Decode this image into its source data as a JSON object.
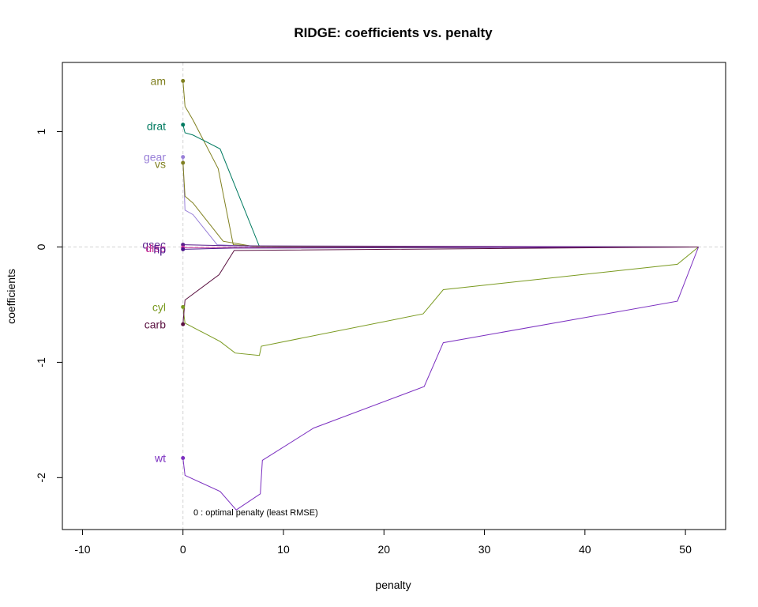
{
  "chart_data": {
    "type": "line",
    "title": "RIDGE: coefficients vs. penalty",
    "xlabel": "penalty",
    "ylabel": "coefficients",
    "xlim": [
      -12,
      54
    ],
    "ylim": [
      -2.45,
      1.6
    ],
    "x_ticks": [
      -10,
      0,
      10,
      20,
      30,
      40,
      50
    ],
    "y_ticks": [
      -2,
      -1,
      0,
      1
    ],
    "reference_lines": {
      "x": 0,
      "y": 0,
      "style": "dashed",
      "color": "#d3d3d3"
    },
    "annotation": "0 : optimal penalty (least RMSE)",
    "grid": false,
    "legend": "none",
    "series": [
      {
        "name": "am",
        "color": "#808020",
        "label_y": 1.44,
        "points": [
          [
            0,
            1.44
          ],
          [
            0.2,
            1.22
          ],
          [
            1,
            1.1
          ],
          [
            3.5,
            0.68
          ],
          [
            5,
            0.02
          ],
          [
            7.5,
            0.005
          ],
          [
            10,
            0.002
          ],
          [
            51.3,
            0
          ]
        ]
      },
      {
        "name": "drat",
        "color": "#007a60",
        "label_y": 1.05,
        "points": [
          [
            0,
            1.06
          ],
          [
            0.2,
            0.99
          ],
          [
            1,
            0.97
          ],
          [
            3.7,
            0.85
          ],
          [
            7.6,
            0.005
          ],
          [
            10,
            0.002
          ],
          [
            51.3,
            0
          ]
        ]
      },
      {
        "name": "gear",
        "color": "#9980d8",
        "label_y": 0.78,
        "points": [
          [
            0,
            0.78
          ],
          [
            0.2,
            0.32
          ],
          [
            1,
            0.28
          ],
          [
            3.4,
            0.02
          ],
          [
            7,
            0.005
          ],
          [
            51.3,
            0
          ]
        ]
      },
      {
        "name": "vs",
        "color": "#808020",
        "label_y": 0.72,
        "points": [
          [
            0,
            0.73
          ],
          [
            0.2,
            0.44
          ],
          [
            1,
            0.38
          ],
          [
            4,
            0.05
          ],
          [
            7,
            0.005
          ],
          [
            51.3,
            0
          ]
        ]
      },
      {
        "name": "qsec",
        "color": "#5a1e8c",
        "label_y": 0.02,
        "points": [
          [
            0,
            0.02
          ],
          [
            5,
            0.01
          ],
          [
            51.3,
            0
          ]
        ]
      },
      {
        "name": "disp",
        "color": "#cc3399",
        "label_y": -0.01,
        "points": [
          [
            0,
            -0.005
          ],
          [
            5,
            -0.005
          ],
          [
            51.3,
            0
          ]
        ]
      },
      {
        "name": "hp",
        "color": "#4a148c",
        "label_y": -0.02,
        "points": [
          [
            0,
            -0.02
          ],
          [
            5,
            -0.01
          ],
          [
            51.3,
            0
          ]
        ]
      },
      {
        "name": "cyl",
        "color": "#7a9a20",
        "label_y": -0.52,
        "points": [
          [
            0,
            -0.52
          ],
          [
            0.2,
            -0.66
          ],
          [
            3.7,
            -0.82
          ],
          [
            5.2,
            -0.92
          ],
          [
            7.6,
            -0.94
          ],
          [
            7.8,
            -0.86
          ],
          [
            23.9,
            -0.58
          ],
          [
            25.9,
            -0.37
          ],
          [
            49.2,
            -0.15
          ],
          [
            51.3,
            0
          ]
        ]
      },
      {
        "name": "carb",
        "color": "#5a1040",
        "label_y": -0.67,
        "points": [
          [
            0,
            -0.67
          ],
          [
            0.2,
            -0.46
          ],
          [
            3.6,
            -0.24
          ],
          [
            5.1,
            -0.03
          ],
          [
            51.3,
            0
          ]
        ]
      },
      {
        "name": "wt",
        "color": "#7b2fc0",
        "label_y": -1.83,
        "points": [
          [
            0,
            -1.83
          ],
          [
            0.2,
            -1.98
          ],
          [
            3.7,
            -2.12
          ],
          [
            5.3,
            -2.28
          ],
          [
            7.7,
            -2.14
          ],
          [
            7.9,
            -1.85
          ],
          [
            13,
            -1.57
          ],
          [
            24,
            -1.21
          ],
          [
            25.9,
            -0.83
          ],
          [
            49.2,
            -0.47
          ],
          [
            51.3,
            0
          ]
        ]
      }
    ]
  }
}
